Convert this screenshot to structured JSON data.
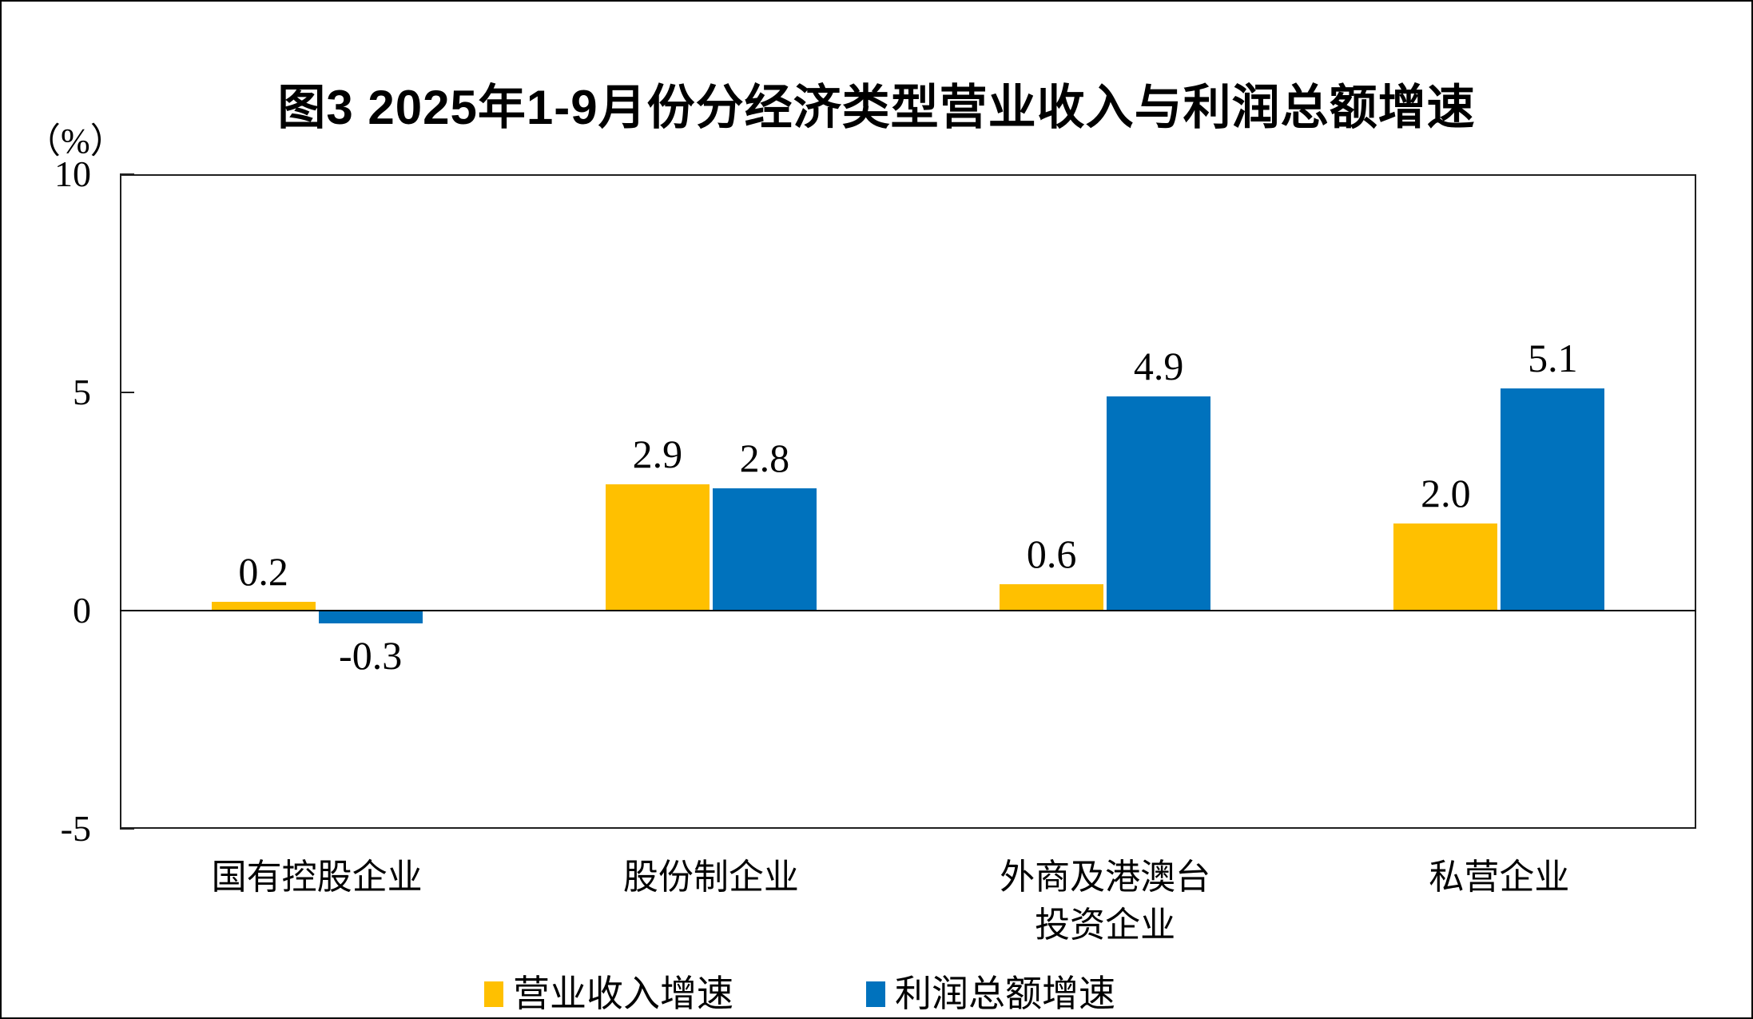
{
  "header": {
    "title": "图3 2025年1-9月份分经济类型营业收入与利润总额增速"
  },
  "colors": {
    "revenue_series": "#FFC000",
    "profit_series": "#0072BD",
    "axis": "#1f1f1f",
    "text": "#000000",
    "background": "#ffffff"
  },
  "chart_data": {
    "type": "bar",
    "title": "图3 2025年1-9月份分经济类型营业收入与利润总额增速",
    "ylabel": "（%）",
    "xlabel": "",
    "categories": [
      "国有控股企业",
      "股份制企业",
      "外商及港澳台投资企业",
      "私营企业"
    ],
    "category_lines": [
      [
        "国有控股企业"
      ],
      [
        "股份制企业"
      ],
      [
        "外商及港澳台",
        "投资企业"
      ],
      [
        "私营企业"
      ]
    ],
    "series": [
      {
        "name": "营业收入增速",
        "color": "#FFC000",
        "values": [
          0.2,
          2.9,
          0.6,
          2.0
        ],
        "labels": [
          "0.2",
          "2.9",
          "0.6",
          "2.0"
        ]
      },
      {
        "name": "利润总额增速",
        "color": "#0072BD",
        "values": [
          -0.3,
          2.8,
          4.9,
          5.1
        ],
        "labels": [
          "-0.3",
          "2.8",
          "4.9",
          "5.1"
        ]
      }
    ],
    "ylim": [
      -5,
      10
    ],
    "yticks": [
      10,
      5,
      0,
      -5
    ],
    "ytick_labels": [
      "10",
      "5",
      "0",
      "-5"
    ],
    "grid": false,
    "legend_position": "bottom"
  }
}
